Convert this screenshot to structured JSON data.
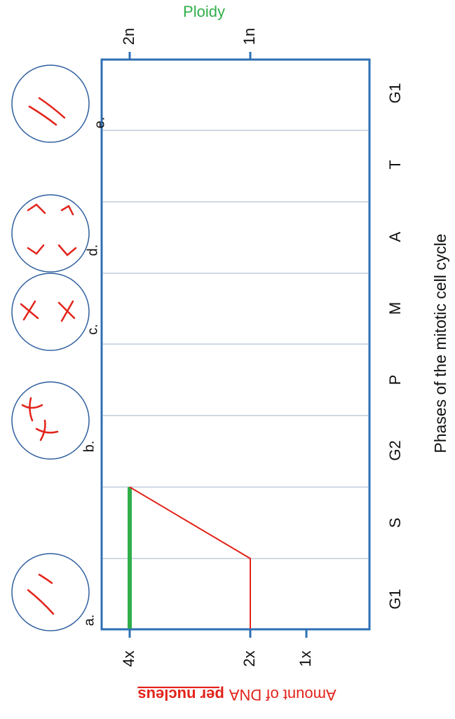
{
  "title": "Ploidy",
  "x_axis_label": "Phases of the mitotic cell cycle",
  "y_axis_label": {
    "text": "Amount of DNA",
    "emphasis": "per nucleus"
  },
  "phases": [
    "G1",
    "S",
    "G2",
    "P",
    "M",
    "A",
    "T",
    "G1"
  ],
  "dna_ticks": [
    "4x",
    "2x",
    "1x"
  ],
  "ploidy_ticks": [
    "2n",
    "1n"
  ],
  "cell_labels": [
    "a.",
    "b.",
    "c.",
    "d.",
    "e."
  ]
}
